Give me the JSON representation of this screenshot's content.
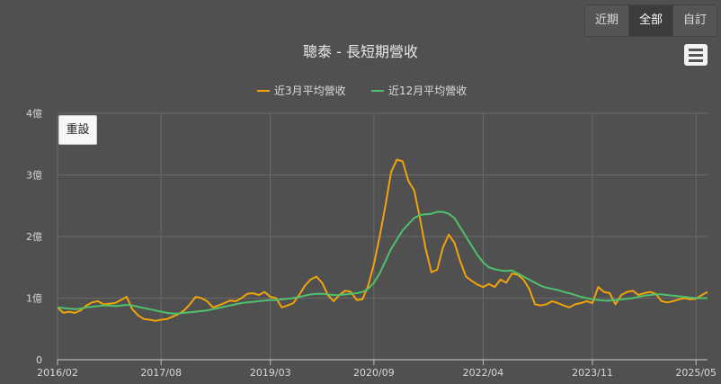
{
  "range_buttons": [
    {
      "label": "近期",
      "active": false
    },
    {
      "label": "全部",
      "active": true
    },
    {
      "label": "自訂",
      "active": false
    }
  ],
  "menu_icon": "hamburger-menu-icon",
  "reset_label": "重設",
  "colors": {
    "background": "#505050",
    "series1": "#f0a30a",
    "series2": "#4fc06b",
    "grid": "#6a6a6a"
  },
  "chart_data": {
    "type": "line",
    "title": "聰泰 - 長短期營收",
    "xlabel": "",
    "ylabel": "",
    "ylim": [
      0,
      4
    ],
    "y_ticks": [
      "0",
      "1億",
      "2億",
      "3億",
      "4億"
    ],
    "x_ticks": [
      {
        "label": "2016/02",
        "index": 0
      },
      {
        "label": "2017/08",
        "index": 18
      },
      {
        "label": "2019/03",
        "index": 37
      },
      {
        "label": "2020/09",
        "index": 55
      },
      {
        "label": "2022/04",
        "index": 74
      },
      {
        "label": "2023/11",
        "index": 93
      },
      {
        "label": "2025/05",
        "index": 111
      }
    ],
    "grid": true,
    "legend_position": "top-center",
    "series": [
      {
        "name": "近3月平均營收",
        "color": "#f0a30a",
        "values": [
          0.85,
          0.76,
          0.78,
          0.76,
          0.8,
          0.88,
          0.93,
          0.95,
          0.9,
          0.91,
          0.92,
          0.97,
          1.02,
          0.82,
          0.72,
          0.66,
          0.65,
          0.63,
          0.65,
          0.66,
          0.7,
          0.74,
          0.8,
          0.9,
          1.02,
          1.0,
          0.95,
          0.85,
          0.88,
          0.92,
          0.96,
          0.95,
          1.0,
          1.07,
          1.08,
          1.05,
          1.1,
          1.02,
          1.0,
          0.85,
          0.88,
          0.92,
          1.05,
          1.2,
          1.3,
          1.35,
          1.25,
          1.05,
          0.95,
          1.05,
          1.12,
          1.1,
          0.97,
          0.98,
          1.2,
          1.55,
          2.0,
          2.5,
          3.05,
          3.25,
          3.22,
          2.9,
          2.75,
          2.3,
          1.8,
          1.42,
          1.46,
          1.82,
          2.03,
          1.9,
          1.6,
          1.35,
          1.28,
          1.22,
          1.18,
          1.23,
          1.18,
          1.3,
          1.25,
          1.4,
          1.38,
          1.3,
          1.15,
          0.9,
          0.88,
          0.9,
          0.95,
          0.92,
          0.88,
          0.85,
          0.9,
          0.92,
          0.95,
          0.92,
          1.18,
          1.1,
          1.08,
          0.9,
          1.05,
          1.1,
          1.12,
          1.05,
          1.08,
          1.1,
          1.07,
          0.95,
          0.93,
          0.95,
          0.98,
          1.0,
          0.98,
          0.99,
          1.05,
          1.1
        ]
      },
      {
        "name": "近12月平均營收",
        "color": "#4fc06b",
        "values": [
          0.85,
          0.84,
          0.83,
          0.82,
          0.83,
          0.85,
          0.86,
          0.87,
          0.88,
          0.88,
          0.87,
          0.88,
          0.89,
          0.88,
          0.86,
          0.84,
          0.82,
          0.8,
          0.78,
          0.76,
          0.75,
          0.75,
          0.76,
          0.77,
          0.78,
          0.79,
          0.8,
          0.82,
          0.84,
          0.86,
          0.88,
          0.9,
          0.92,
          0.93,
          0.94,
          0.95,
          0.96,
          0.97,
          0.97,
          0.98,
          0.99,
          1.0,
          1.02,
          1.04,
          1.06,
          1.07,
          1.07,
          1.06,
          1.05,
          1.05,
          1.06,
          1.07,
          1.08,
          1.1,
          1.15,
          1.25,
          1.4,
          1.6,
          1.8,
          1.95,
          2.1,
          2.2,
          2.3,
          2.35,
          2.36,
          2.37,
          2.4,
          2.4,
          2.37,
          2.3,
          2.15,
          2.0,
          1.85,
          1.7,
          1.58,
          1.5,
          1.47,
          1.45,
          1.44,
          1.45,
          1.4,
          1.35,
          1.3,
          1.25,
          1.2,
          1.17,
          1.15,
          1.13,
          1.1,
          1.08,
          1.05,
          1.02,
          1.0,
          0.98,
          0.97,
          0.96,
          0.96,
          0.97,
          0.98,
          0.99,
          1.0,
          1.02,
          1.04,
          1.05,
          1.06,
          1.06,
          1.05,
          1.04,
          1.03,
          1.02,
          1.01,
          1.0,
          1.0,
          1.0
        ]
      }
    ]
  }
}
